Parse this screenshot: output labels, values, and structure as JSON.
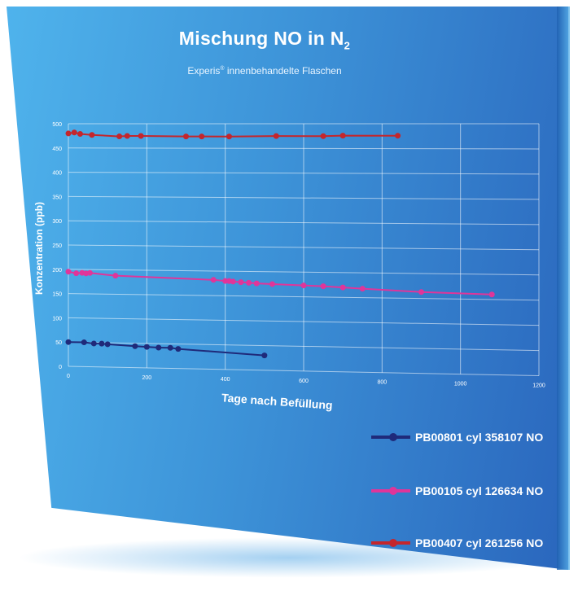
{
  "chart_data": {
    "type": "line",
    "title": "Mischung NO in N",
    "title_subscript": "2",
    "subtitle": "Experis",
    "subtitle_sup": "®",
    "subtitle_rest": " innenbehandelte Flaschen",
    "xlabel": "Tage nach Befüllung",
    "ylabel": "Konzentration (ppb)",
    "xlim": [
      0,
      1200
    ],
    "ylim": [
      0,
      500
    ],
    "xticks": [
      0,
      200,
      400,
      600,
      800,
      1000,
      1200
    ],
    "yticks": [
      0,
      50,
      100,
      150,
      200,
      250,
      300,
      350,
      400,
      450,
      500
    ],
    "grid": true,
    "legend_position": "bottom-right",
    "series": [
      {
        "name": "PB00801 cyl 358107 NO",
        "color": "#1f2a7a",
        "x": [
          0,
          40,
          65,
          85,
          100,
          170,
          200,
          230,
          260,
          280,
          500
        ],
        "y": [
          50,
          50,
          48,
          48,
          47,
          44,
          43,
          42,
          42,
          40,
          30
        ]
      },
      {
        "name": "PB00105 cyl 126634 NO",
        "color": "#e0359a",
        "x": [
          0,
          20,
          35,
          45,
          55,
          120,
          370,
          400,
          410,
          420,
          440,
          460,
          480,
          520,
          600,
          650,
          700,
          750,
          900,
          1080
        ],
        "y": [
          195,
          192,
          193,
          192,
          193,
          188,
          182,
          180,
          180,
          179,
          178,
          177,
          176,
          175,
          173,
          172,
          170,
          168,
          163,
          160
        ]
      },
      {
        "name": "PB00407 cyl 261256 NO",
        "color": "#c4262c",
        "x": [
          0,
          15,
          30,
          60,
          130,
          150,
          185,
          300,
          340,
          410,
          530,
          650,
          700,
          840
        ],
        "y": [
          480,
          482,
          479,
          477,
          474,
          475,
          475,
          474,
          474,
          474,
          475,
          475,
          476,
          476
        ]
      }
    ]
  }
}
